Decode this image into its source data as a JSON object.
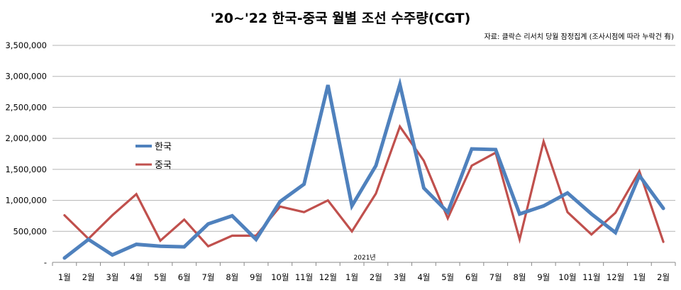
{
  "chart_data": {
    "type": "line",
    "title": "'20~'22 한국-중국 월별 조선 수주량(CGT)",
    "source": "자료: 클락슨 리서치 당월 잠정집계 (조사시점에 따라 누락건 有)",
    "annotation": "2021년",
    "categories": [
      "1월",
      "2월",
      "3월",
      "4월",
      "5월",
      "6월",
      "7월",
      "8월",
      "9월",
      "10월",
      "11월",
      "12월",
      "1월",
      "2월",
      "3월",
      "4월",
      "5월",
      "6월",
      "7월",
      "8월",
      "9월",
      "10월",
      "11월",
      "12월",
      "1월",
      "2월"
    ],
    "ylim": [
      0,
      3500000
    ],
    "yticks": [
      "-",
      "500,000",
      "1,000,000",
      "1,500,000",
      "2,000,000",
      "2,500,000",
      "3,000,000",
      "3,500,000"
    ],
    "grid": true,
    "legend_position": "left-middle",
    "series": [
      {
        "name": "한국",
        "color": "#4F81BD",
        "values": [
          70000,
          370000,
          120000,
          290000,
          260000,
          250000,
          620000,
          750000,
          370000,
          980000,
          1260000,
          2860000,
          910000,
          1560000,
          2870000,
          1200000,
          810000,
          1830000,
          1820000,
          780000,
          910000,
          1120000,
          780000,
          480000,
          1400000,
          870000
        ]
      },
      {
        "name": "중국",
        "color": "#C0504D",
        "values": [
          760000,
          380000,
          760000,
          1100000,
          350000,
          690000,
          260000,
          430000,
          430000,
          900000,
          810000,
          1000000,
          500000,
          1110000,
          2190000,
          1640000,
          710000,
          1560000,
          1770000,
          370000,
          1950000,
          810000,
          450000,
          800000,
          1470000,
          330000
        ]
      }
    ]
  }
}
